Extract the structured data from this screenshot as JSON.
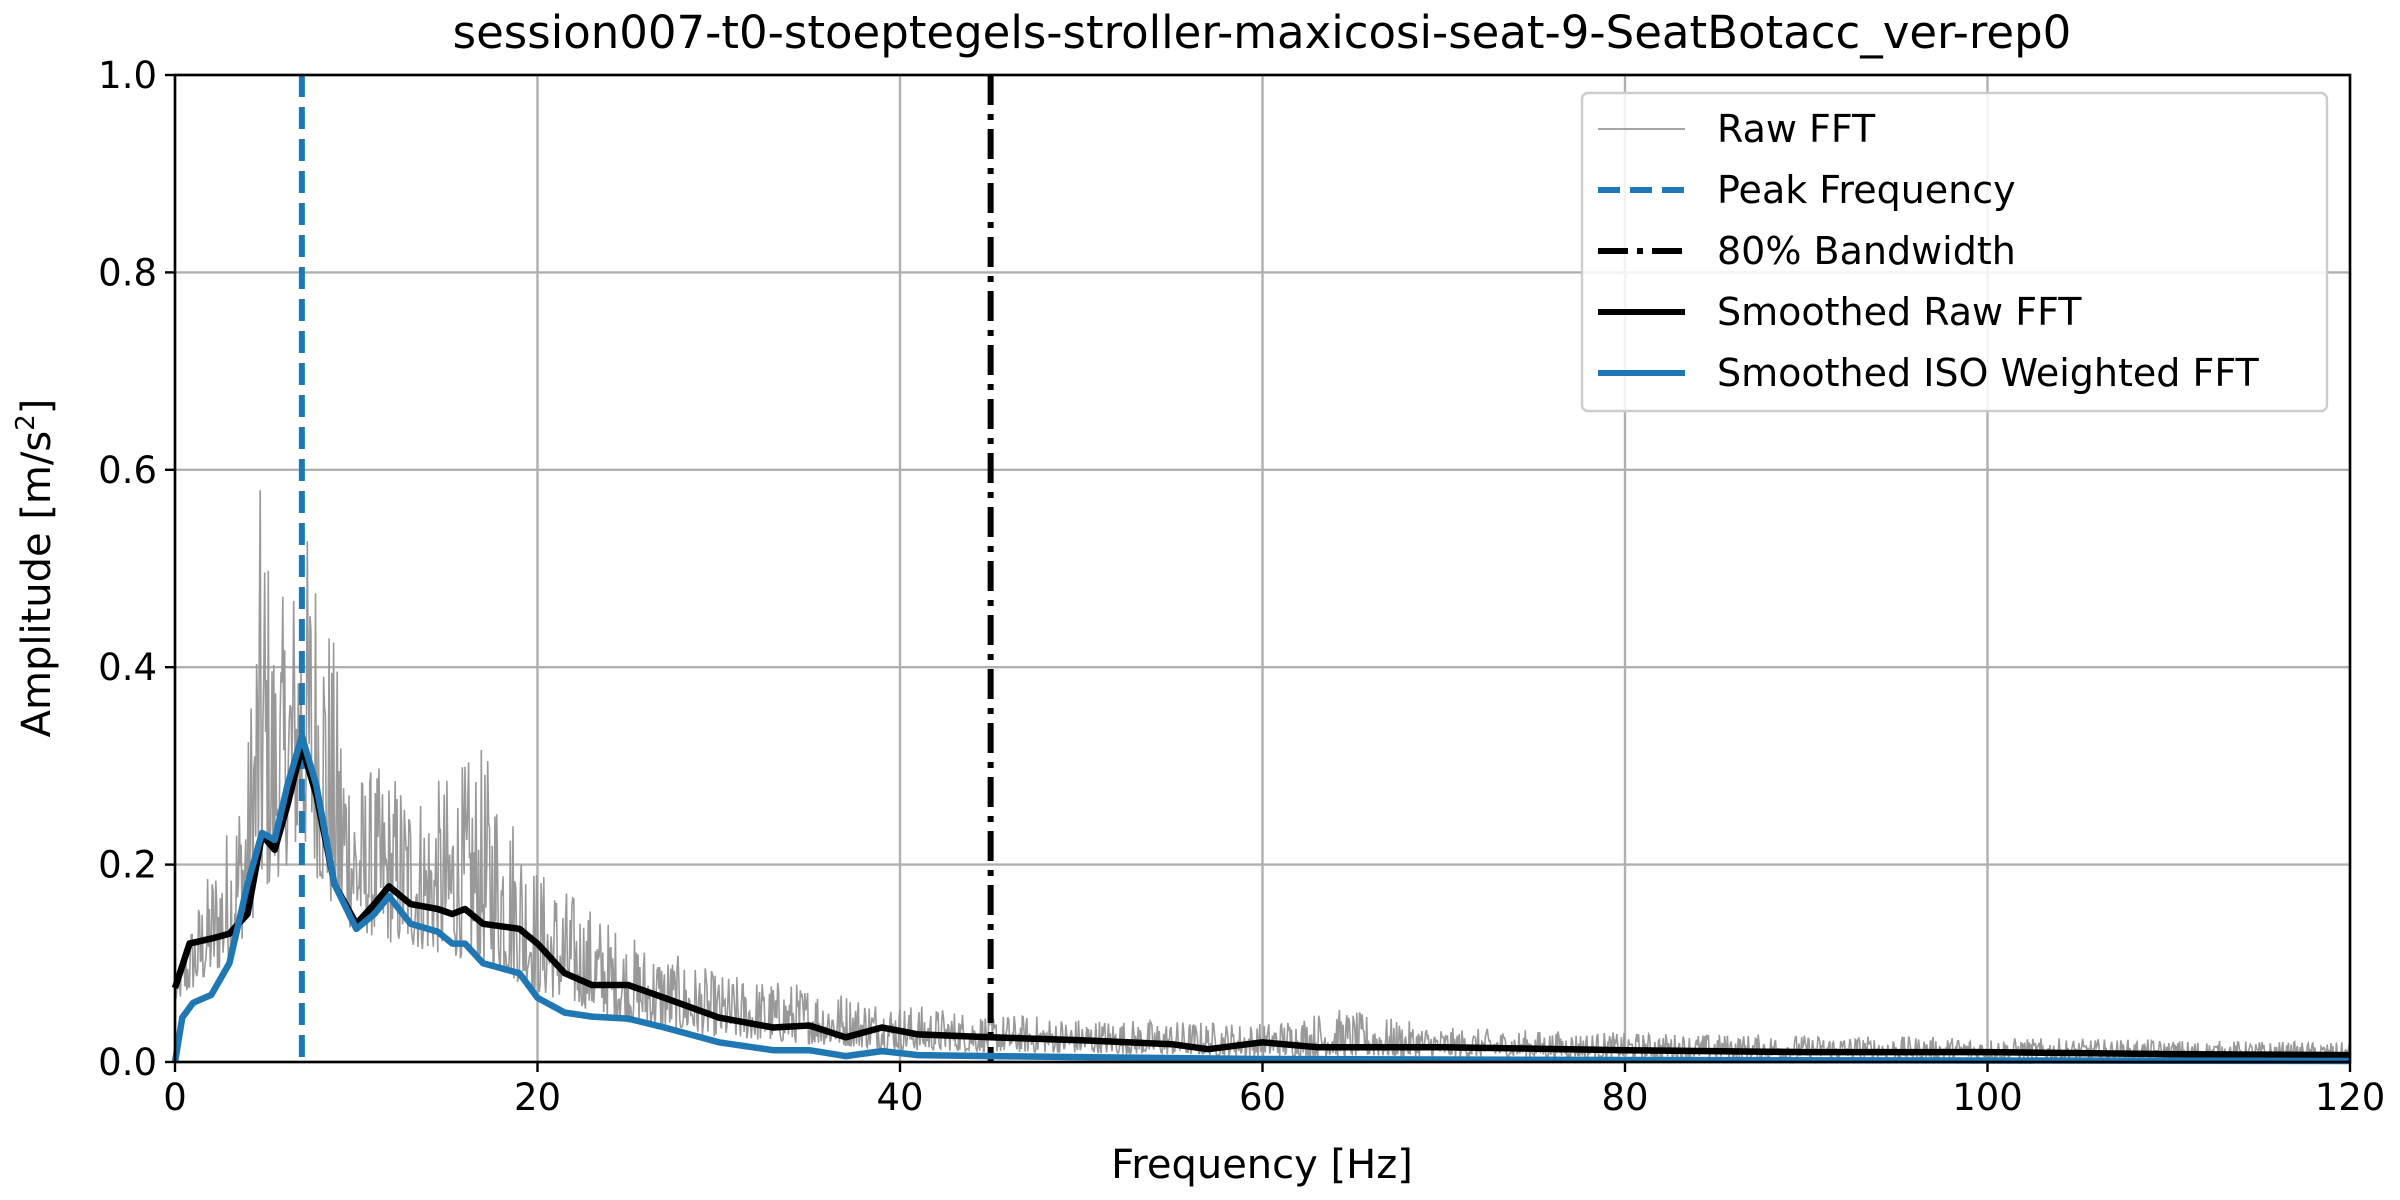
{
  "chart_data": {
    "type": "line",
    "title": "session007-t0-stoeptegels-stroller-maxicosi-seat-9-SeatBotacc_ver-rep0",
    "xlabel": "Frequency [Hz]",
    "ylabel_main": "Amplitude [m/s",
    "ylabel_sup": "2",
    "ylabel_end": "]",
    "xlim": [
      0,
      120
    ],
    "ylim": [
      0,
      1.0
    ],
    "xticks": [
      "0",
      "20",
      "40",
      "60",
      "80",
      "100",
      "120"
    ],
    "yticks": [
      "0.0",
      "0.2",
      "0.4",
      "0.6",
      "0.8",
      "1.0"
    ],
    "grid": true,
    "legend_position": "upper right",
    "vertical_lines": [
      {
        "name": "Peak Frequency",
        "x": 7.0,
        "color": "#1f77b4",
        "style": "dashed"
      },
      {
        "name": "80% Bandwidth",
        "x": 45.0,
        "color": "#000000",
        "style": "dashdot"
      }
    ],
    "series": [
      {
        "name": "Raw FFT",
        "color": "#999999",
        "style": "thin",
        "envelope": [
          [
            0,
            0.08
          ],
          [
            1,
            0.15
          ],
          [
            2,
            0.2
          ],
          [
            3,
            0.25
          ],
          [
            4,
            0.32
          ],
          [
            4.8,
            0.62
          ],
          [
            5.5,
            0.45
          ],
          [
            6.5,
            0.5
          ],
          [
            7,
            0.55
          ],
          [
            8,
            0.53
          ],
          [
            9,
            0.4
          ],
          [
            10,
            0.3
          ],
          [
            12,
            0.3
          ],
          [
            14,
            0.28
          ],
          [
            17,
            0.32
          ],
          [
            19,
            0.25
          ],
          [
            20,
            0.2
          ],
          [
            25,
            0.13
          ],
          [
            30,
            0.09
          ],
          [
            35,
            0.08
          ],
          [
            40,
            0.06
          ],
          [
            45,
            0.05
          ],
          [
            50,
            0.045
          ],
          [
            60,
            0.04
          ],
          [
            64,
            0.055
          ],
          [
            70,
            0.035
          ],
          [
            80,
            0.03
          ],
          [
            100,
            0.025
          ],
          [
            120,
            0.02
          ]
        ],
        "baseline": [
          [
            0,
            0.06
          ],
          [
            3,
            0.1
          ],
          [
            5,
            0.17
          ],
          [
            7,
            0.22
          ],
          [
            9,
            0.14
          ],
          [
            12,
            0.12
          ],
          [
            17,
            0.1
          ],
          [
            20,
            0.07
          ],
          [
            25,
            0.04
          ],
          [
            30,
            0.025
          ],
          [
            40,
            0.012
          ],
          [
            60,
            0.006
          ],
          [
            120,
            0.002
          ]
        ]
      },
      {
        "name": "Smoothed Raw FFT",
        "color": "#000000",
        "style": "thick",
        "points": [
          [
            0,
            0.075
          ],
          [
            0.8,
            0.12
          ],
          [
            2,
            0.125
          ],
          [
            3,
            0.13
          ],
          [
            4,
            0.15
          ],
          [
            4.8,
            0.23
          ],
          [
            5.5,
            0.215
          ],
          [
            6.2,
            0.26
          ],
          [
            7,
            0.32
          ],
          [
            7.8,
            0.27
          ],
          [
            8.8,
            0.18
          ],
          [
            10,
            0.14
          ],
          [
            11,
            0.16
          ],
          [
            11.8,
            0.178
          ],
          [
            13,
            0.16
          ],
          [
            14.5,
            0.155
          ],
          [
            15.3,
            0.15
          ],
          [
            16,
            0.155
          ],
          [
            17,
            0.14
          ],
          [
            19,
            0.135
          ],
          [
            20,
            0.12
          ],
          [
            21.5,
            0.09
          ],
          [
            23,
            0.078
          ],
          [
            25,
            0.078
          ],
          [
            27,
            0.065
          ],
          [
            30,
            0.045
          ],
          [
            33,
            0.035
          ],
          [
            35,
            0.037
          ],
          [
            37,
            0.025
          ],
          [
            39,
            0.035
          ],
          [
            41,
            0.028
          ],
          [
            45,
            0.025
          ],
          [
            50,
            0.022
          ],
          [
            55,
            0.018
          ],
          [
            57,
            0.013
          ],
          [
            60,
            0.02
          ],
          [
            63,
            0.015
          ],
          [
            70,
            0.015
          ],
          [
            80,
            0.012
          ],
          [
            90,
            0.01
          ],
          [
            100,
            0.01
          ],
          [
            110,
            0.008
          ],
          [
            120,
            0.007
          ]
        ]
      },
      {
        "name": "Smoothed ISO Weighted FFT",
        "color": "#1f77b4",
        "style": "thick",
        "points": [
          [
            0,
            0.0
          ],
          [
            0.4,
            0.045
          ],
          [
            1,
            0.06
          ],
          [
            2,
            0.068
          ],
          [
            3,
            0.1
          ],
          [
            4,
            0.18
          ],
          [
            4.8,
            0.232
          ],
          [
            5.5,
            0.225
          ],
          [
            6.2,
            0.28
          ],
          [
            7,
            0.33
          ],
          [
            7.8,
            0.28
          ],
          [
            8.8,
            0.18
          ],
          [
            10,
            0.135
          ],
          [
            11,
            0.15
          ],
          [
            11.8,
            0.168
          ],
          [
            13,
            0.14
          ],
          [
            14.5,
            0.132
          ],
          [
            15.3,
            0.12
          ],
          [
            16,
            0.12
          ],
          [
            17,
            0.1
          ],
          [
            19,
            0.09
          ],
          [
            20,
            0.065
          ],
          [
            21.5,
            0.05
          ],
          [
            23,
            0.046
          ],
          [
            25,
            0.044
          ],
          [
            27,
            0.035
          ],
          [
            30,
            0.02
          ],
          [
            33,
            0.012
          ],
          [
            35,
            0.012
          ],
          [
            37,
            0.006
          ],
          [
            39,
            0.011
          ],
          [
            41,
            0.007
          ],
          [
            45,
            0.006
          ],
          [
            50,
            0.005
          ],
          [
            60,
            0.003
          ],
          [
            80,
            0.002
          ],
          [
            120,
            0.001
          ]
        ]
      }
    ],
    "legend": [
      {
        "label": "Raw FFT",
        "color": "#999999",
        "style": "thin"
      },
      {
        "label": "Peak Frequency",
        "color": "#1f77b4",
        "style": "dashed"
      },
      {
        "label": "80% Bandwidth",
        "color": "#000000",
        "style": "dashdot"
      },
      {
        "label": "Smoothed Raw FFT",
        "color": "#000000",
        "style": "thick"
      },
      {
        "label": "Smoothed ISO Weighted FFT",
        "color": "#1f77b4",
        "style": "thick"
      }
    ]
  }
}
